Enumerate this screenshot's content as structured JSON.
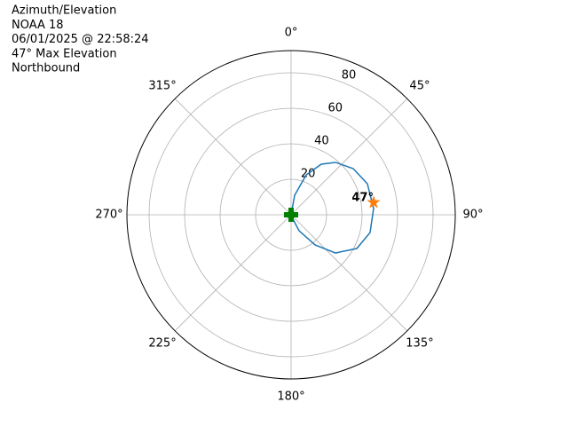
{
  "chart_data": {
    "type": "polar",
    "title_lines": [
      "Azimuth/Elevation",
      "NOAA 18",
      "06/01/2025 @ 22:58:24",
      "47° Max Elevation",
      "Northbound"
    ],
    "rlim": [
      0,
      92.5
    ],
    "rticks": [
      20,
      40,
      60,
      80
    ],
    "thetaticks": [
      {
        "value": 0,
        "label": "0°"
      },
      {
        "value": 45,
        "label": "45°"
      },
      {
        "value": 90,
        "label": "90°"
      },
      {
        "value": 135,
        "label": "135°"
      },
      {
        "value": 180,
        "label": "180°"
      },
      {
        "value": 225,
        "label": "225°"
      },
      {
        "value": 270,
        "label": "270°"
      },
      {
        "value": 315,
        "label": "315°"
      }
    ],
    "theta_direction": "clockwise",
    "theta_zero": "N",
    "grid": true,
    "series": [
      {
        "color": "#1f77b4",
        "theta": [
          0,
          10.3,
          20.7,
          30.8,
          40.3,
          53.4,
          67.9,
          85.7,
          102.7,
          117.2,
          130.7,
          141.5,
          153.4,
          180
        ],
        "r": [
          0,
          11.2,
          24.0,
          33.2,
          38.7,
          43.6,
          46.4,
          46.6,
          45.6,
          41.6,
          33.0,
          21.7,
          10.1,
          0.5
        ]
      }
    ],
    "max_marker": {
      "theta": 81.5,
      "r": 47,
      "label": "47°",
      "color": "#ff7f0e"
    },
    "start_marker": {
      "theta": 0,
      "r": 0,
      "color": "#008000"
    }
  }
}
